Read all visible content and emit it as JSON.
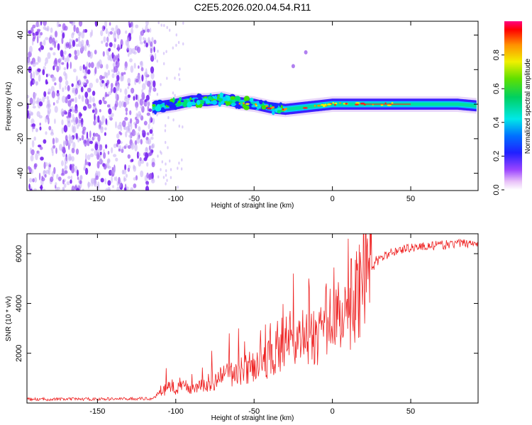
{
  "figure_title": "C2E5.2026.020.04.54.R11",
  "colors": {
    "snr_line": "#ee2222",
    "noise_purple": "#7722ee",
    "noise_light": "#c8b0f6"
  },
  "chart_data": [
    {
      "type": "heatmap",
      "title": "C2E5.2026.020.04.54.R11",
      "xlabel": "Height of straight line (km)",
      "ylabel": "Frequency (Hz)",
      "xlim": [
        -195,
        93
      ],
      "ylim": [
        -50,
        48
      ],
      "x_ticks": [
        -150,
        -100,
        -50,
        0,
        50
      ],
      "x_tick_labels": [
        "-150",
        "-100",
        "-50",
        "0",
        "50"
      ],
      "y_ticks": [
        -40,
        -20,
        0,
        20,
        40
      ],
      "y_tick_labels": [
        "-40",
        "-20",
        "0",
        "20",
        "40"
      ],
      "colorbar": {
        "label": "Normalized spectral amplitude",
        "range": [
          0,
          1
        ],
        "ticks": [
          0.0,
          0.2,
          0.4,
          0.6,
          0.8
        ],
        "tick_labels": [
          "0.0",
          "0.2",
          "0.4",
          "0.6",
          "0.8"
        ]
      },
      "features": {
        "noise_region_x": [
          -195,
          -113
        ],
        "signal_start_x": -115,
        "signal_ridge": [
          [
            -115,
            -2
          ],
          [
            -100,
            0
          ],
          [
            -90,
            2
          ],
          [
            -80,
            2
          ],
          [
            -70,
            3
          ],
          [
            -60,
            1
          ],
          [
            -50,
            0
          ],
          [
            -40,
            -2
          ],
          [
            -30,
            -3
          ],
          [
            -20,
            -2
          ],
          [
            -10,
            -1
          ],
          [
            0,
            0
          ],
          [
            10,
            0
          ],
          [
            20,
            0
          ],
          [
            40,
            0
          ],
          [
            60,
            0
          ],
          [
            80,
            0
          ],
          [
            92,
            -1
          ]
        ],
        "isolated_points": [
          [
            -25,
            22
          ],
          [
            -17,
            30
          ]
        ]
      }
    },
    {
      "type": "line",
      "xlabel": "Height of straight line (km)",
      "ylabel": "SNR (10 * v/v)",
      "xlim": [
        -195,
        93
      ],
      "ylim": [
        0,
        6800
      ],
      "x_ticks": [
        -150,
        -100,
        -50,
        0,
        50
      ],
      "x_tick_labels": [
        "-150",
        "-100",
        "-50",
        "0",
        "50"
      ],
      "y_ticks": [
        2000,
        4000,
        6000
      ],
      "y_tick_labels": [
        "2000",
        "4000",
        "6000"
      ],
      "series": [
        {
          "name": "SNR",
          "trend": [
            [
              -195,
              150
            ],
            [
              -150,
              160
            ],
            [
              -115,
              180
            ],
            [
              -105,
              600
            ],
            [
              -90,
              650
            ],
            [
              -75,
              900
            ],
            [
              -60,
              1300
            ],
            [
              -50,
              1500
            ],
            [
              -40,
              1800
            ],
            [
              -30,
              2300
            ],
            [
              -20,
              2600
            ],
            [
              -10,
              2600
            ],
            [
              0,
              2900
            ],
            [
              5,
              3100
            ],
            [
              10,
              3500
            ],
            [
              15,
              4100
            ],
            [
              20,
              4800
            ],
            [
              25,
              5400
            ],
            [
              30,
              5800
            ],
            [
              40,
              6100
            ],
            [
              50,
              6250
            ],
            [
              60,
              6300
            ],
            [
              70,
              6350
            ],
            [
              80,
              6400
            ],
            [
              92,
              6450
            ]
          ],
          "spikes": [
            [
              -106,
              1400
            ],
            [
              -77,
              2100
            ],
            [
              -66,
              2800
            ],
            [
              -60,
              3000
            ],
            [
              -40,
              2800
            ],
            [
              -35,
              3300
            ],
            [
              -27,
              3700
            ],
            [
              -25,
              5200
            ],
            [
              -15,
              5000
            ],
            [
              -4,
              4800
            ],
            [
              3,
              4300
            ],
            [
              10,
              6600
            ],
            [
              12,
              5800
            ],
            [
              28,
              5900
            ]
          ]
        }
      ]
    }
  ]
}
